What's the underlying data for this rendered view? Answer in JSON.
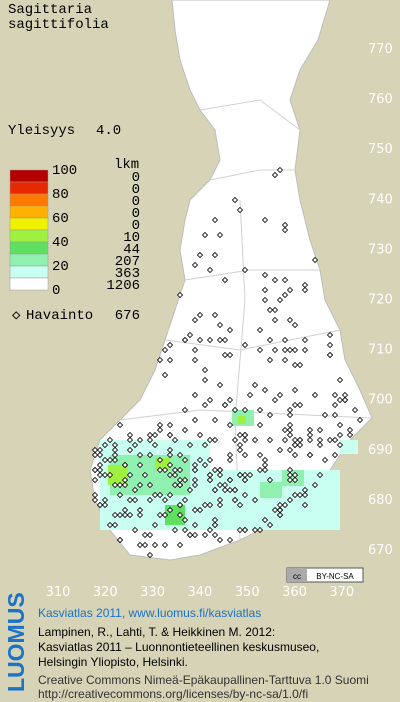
{
  "title_lines": [
    "Sagittaria",
    "sagittifolia"
  ],
  "frequency": {
    "label": "Yleisyys",
    "value": "4.0"
  },
  "legend": {
    "header": "lkm",
    "scale_labels": [
      "100",
      "80",
      "60",
      "40",
      "20",
      "0"
    ],
    "bands": [
      {
        "color": "#b40000",
        "count": "0"
      },
      {
        "color": "#e82800",
        "count": "0"
      },
      {
        "color": "#ff7800",
        "count": "0"
      },
      {
        "color": "#ffb000",
        "count": "0"
      },
      {
        "color": "#f0f000",
        "count": "0"
      },
      {
        "color": "#a0f040",
        "count": "10"
      },
      {
        "color": "#60e060",
        "count": "44"
      },
      {
        "color": "#90f0b0",
        "count": "207"
      },
      {
        "color": "#c8fff0",
        "count": "363"
      },
      {
        "color": "#ffffff",
        "count": "1206"
      }
    ]
  },
  "observations": {
    "label": "Havainto",
    "count": "676"
  },
  "grid": {
    "y_labels": [
      "770",
      "760",
      "750",
      "740",
      "730",
      "720",
      "710",
      "700",
      "690",
      "680",
      "670"
    ],
    "x_labels": [
      "310",
      "320",
      "330",
      "340",
      "350",
      "360",
      "370"
    ]
  },
  "license_badge": "BY-NC-SA",
  "logo": "LUOMUS",
  "footer": {
    "headline": "Kasviatlas 2011, www.luomus.fi/kasviatlas",
    "citation": [
      "Lampinen, R., Lahti, T. & Heikkinen M. 2012:",
      "Kasviatlas 2011 – Luonnontieteellinen keskusmuseo,",
      "Helsingin Yliopisto, Helsinki."
    ],
    "license": [
      "Creative Commons Nimeä-Epäkaupallinen-Tarttuva 1.0 Suomi",
      "http://creativecommons.org/licenses/by-nc-sa/1.0/fi"
    ]
  }
}
